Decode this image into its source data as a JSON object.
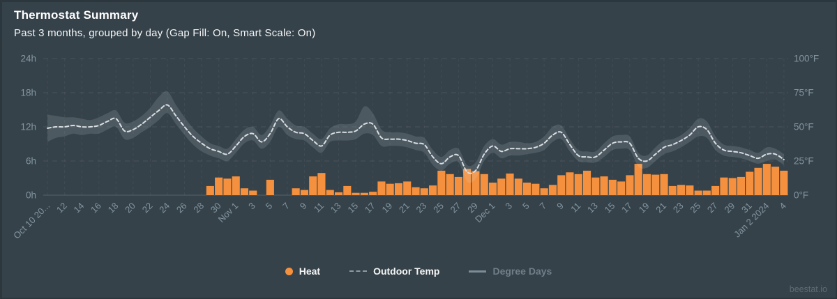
{
  "header": {
    "title": "Thermostat Summary",
    "subtitle": "Past 3 months, grouped by day (Gap Fill: On, Smart Scale: On)"
  },
  "watermark": "beestat.io",
  "colors": {
    "background": "#36424a",
    "heat_bar": "#F5913E",
    "temp_line": "#D8DEE2",
    "range_band": "rgba(222,232,238,0.14)",
    "axis_label": "#8396A1",
    "grid_dashed": "rgba(255,255,255,0.09)",
    "grid_zero": "rgba(255,255,255,0.17)",
    "grid_vertical": "rgba(255,255,255,0.05)",
    "legend_dim_text": "#6F7E88",
    "legend_text": "#F5F5F5"
  },
  "legend": {
    "items": [
      {
        "id": "heat",
        "label": "Heat",
        "marker": "circle",
        "color": "#F5913E",
        "label_color": "#F5F5F5",
        "enabled": true
      },
      {
        "id": "outdoor-temp",
        "label": "Outdoor Temp",
        "marker": "dashed-line",
        "color": "#8B9BA6",
        "label_color": "#F5F5F5",
        "enabled": true
      },
      {
        "id": "degree-days",
        "label": "Degree Days",
        "marker": "solid-line",
        "color": "#7D8C96",
        "label_color": "#6F7E88",
        "enabled": false
      }
    ]
  },
  "chart_data": {
    "type": "combo",
    "title": "Thermostat Summary",
    "grid": {
      "horizontal": "dashed",
      "vertical": "faint-dashed",
      "zero_line": "solid"
    },
    "legend_position": "bottom-center",
    "x": {
      "tick_every_days": 2,
      "tick_labels": [
        "Oct 10 20...",
        "12",
        "14",
        "16",
        "18",
        "20",
        "22",
        "24",
        "26",
        "28",
        "30",
        "Nov 1",
        "3",
        "5",
        "7",
        "9",
        "11",
        "13",
        "15",
        "17",
        "19",
        "21",
        "23",
        "25",
        "27",
        "29",
        "Dec 1",
        "3",
        "5",
        "7",
        "9",
        "11",
        "13",
        "15",
        "17",
        "19",
        "21",
        "23",
        "25",
        "27",
        "29",
        "31",
        "Jan 2 2024",
        "4"
      ],
      "dates": [
        "Oct 10",
        "Oct 11",
        "Oct 12",
        "Oct 13",
        "Oct 14",
        "Oct 15",
        "Oct 16",
        "Oct 17",
        "Oct 18",
        "Oct 19",
        "Oct 20",
        "Oct 21",
        "Oct 22",
        "Oct 23",
        "Oct 24",
        "Oct 25",
        "Oct 26",
        "Oct 27",
        "Oct 28",
        "Oct 29",
        "Oct 30",
        "Oct 31",
        "Nov 1",
        "Nov 2",
        "Nov 3",
        "Nov 4",
        "Nov 5",
        "Nov 6",
        "Nov 7",
        "Nov 8",
        "Nov 9",
        "Nov 10",
        "Nov 11",
        "Nov 12",
        "Nov 13",
        "Nov 14",
        "Nov 15",
        "Nov 16",
        "Nov 17",
        "Nov 18",
        "Nov 19",
        "Nov 20",
        "Nov 21",
        "Nov 22",
        "Nov 23",
        "Nov 24",
        "Nov 25",
        "Nov 26",
        "Nov 27",
        "Nov 28",
        "Nov 29",
        "Nov 30",
        "Dec 1",
        "Dec 2",
        "Dec 3",
        "Dec 4",
        "Dec 5",
        "Dec 6",
        "Dec 7",
        "Dec 8",
        "Dec 9",
        "Dec 10",
        "Dec 11",
        "Dec 12",
        "Dec 13",
        "Dec 14",
        "Dec 15",
        "Dec 16",
        "Dec 17",
        "Dec 18",
        "Dec 19",
        "Dec 20",
        "Dec 21",
        "Dec 22",
        "Dec 23",
        "Dec 24",
        "Dec 25",
        "Dec 26",
        "Dec 27",
        "Dec 28",
        "Dec 29",
        "Dec 30",
        "Dec 31",
        "Jan 1",
        "Jan 2",
        "Jan 3",
        "Jan 4"
      ]
    },
    "y_left": {
      "ticks": [
        "0h",
        "6h",
        "12h",
        "18h",
        "24h"
      ],
      "range": [
        0,
        24
      ],
      "unit": "hours"
    },
    "y_right": {
      "ticks": [
        "0°F",
        "25°F",
        "50°F",
        "75°F",
        "100°F"
      ],
      "range": [
        0,
        100
      ],
      "unit": "°F"
    },
    "series": [
      {
        "name": "Heat",
        "type": "column",
        "axis": "left",
        "unit": "h",
        "color": "#F5913E",
        "values": [
          0,
          0,
          0,
          0,
          0,
          0,
          0,
          0,
          0,
          0,
          0,
          0,
          0,
          0,
          0,
          0,
          0,
          0,
          0,
          1.6,
          3.1,
          2.9,
          3.3,
          1.2,
          0.8,
          0,
          2.7,
          0,
          0,
          1.2,
          0.9,
          3.3,
          3.9,
          0.9,
          0.5,
          1.6,
          0.4,
          0.4,
          0.6,
          2.4,
          2.0,
          2.1,
          2.4,
          1.4,
          1.2,
          1.7,
          4.3,
          3.7,
          3.2,
          4.6,
          4.2,
          3.7,
          2.2,
          2.9,
          3.8,
          2.9,
          2.2,
          2.0,
          1.2,
          1.8,
          3.5,
          4.0,
          3.7,
          4.3,
          3.1,
          3.3,
          2.7,
          2.4,
          3.5,
          5.5,
          3.7,
          3.6,
          3.7,
          1.6,
          1.8,
          1.7,
          0.8,
          0.8,
          1.6,
          3.1,
          3.0,
          3.2,
          4.1,
          4.8,
          5.5,
          5.0,
          4.3
        ]
      },
      {
        "name": "Outdoor Temp",
        "type": "dashed-line",
        "axis": "right",
        "unit": "°F",
        "color": "#D8DEE2",
        "values": [
          49,
          50,
          50,
          51,
          50,
          50,
          51,
          54,
          56,
          47,
          48,
          52,
          57,
          62,
          66,
          58,
          50,
          43,
          38,
          34,
          32,
          30,
          36,
          43,
          45,
          39,
          45,
          56,
          50,
          46,
          45,
          40,
          36,
          44,
          46,
          46,
          47,
          52,
          52,
          42,
          41,
          41,
          40,
          38,
          37,
          28,
          23,
          28,
          29,
          17,
          18,
          30,
          36,
          32,
          34,
          34,
          34,
          35,
          38,
          44,
          46,
          37,
          29,
          28,
          28,
          33,
          38,
          39,
          38,
          27,
          25,
          30,
          35,
          37,
          40,
          44,
          50,
          48,
          38,
          33,
          32,
          31,
          29,
          27,
          30,
          30,
          26
        ]
      },
      {
        "name": "Outdoor Temp Range",
        "type": "area-range-band",
        "axis": "right",
        "unit": "°F",
        "color": "rgba(222,232,238,0.14)",
        "high": [
          59,
          58,
          57,
          57,
          56,
          55,
          57,
          60,
          62,
          53,
          54,
          58,
          64,
          72,
          76,
          66,
          57,
          49,
          43,
          38,
          36,
          34,
          41,
          48,
          50,
          44,
          51,
          62,
          56,
          51,
          50,
          45,
          41,
          49,
          52,
          52,
          54,
          65,
          60,
          48,
          46,
          46,
          45,
          43,
          42,
          33,
          28,
          33,
          34,
          22,
          24,
          36,
          41,
          37,
          39,
          39,
          38,
          39,
          43,
          50,
          51,
          41,
          33,
          32,
          32,
          38,
          43,
          44,
          43,
          31,
          29,
          35,
          40,
          41,
          44,
          49,
          56,
          54,
          43,
          37,
          36,
          35,
          33,
          31,
          35,
          34,
          30
        ],
        "low": [
          39,
          42,
          43,
          45,
          44,
          45,
          45,
          48,
          50,
          41,
          42,
          46,
          50,
          55,
          60,
          52,
          44,
          37,
          32,
          29,
          27,
          25,
          31,
          38,
          40,
          34,
          39,
          50,
          44,
          41,
          40,
          35,
          31,
          39,
          40,
          40,
          41,
          45,
          44,
          36,
          36,
          36,
          35,
          33,
          31,
          22,
          18,
          23,
          24,
          10,
          12,
          25,
          31,
          27,
          29,
          29,
          30,
          31,
          33,
          39,
          41,
          32,
          25,
          24,
          24,
          28,
          33,
          34,
          33,
          21,
          20,
          25,
          30,
          32,
          35,
          39,
          43,
          42,
          33,
          29,
          28,
          27,
          25,
          23,
          25,
          26,
          22
        ]
      }
    ]
  }
}
